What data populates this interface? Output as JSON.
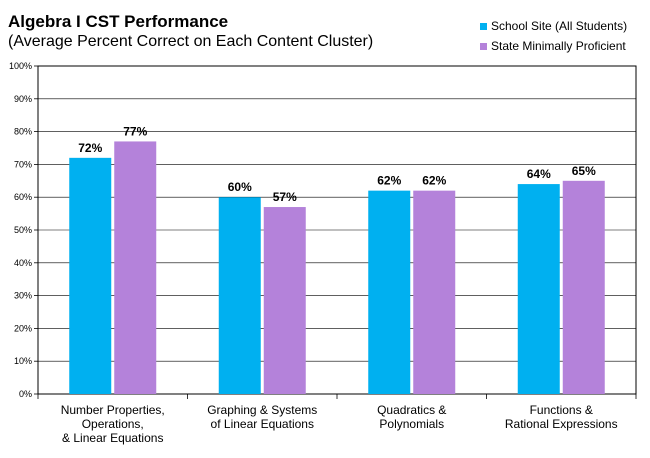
{
  "chart_data": {
    "type": "bar",
    "title": "Algebra I CST Performance",
    "subtitle": "(Average Percent Correct on Each Content Cluster)",
    "categories": [
      [
        "Number Properties,",
        "Operations,",
        "& Linear Equations"
      ],
      [
        "Graphing & Systems",
        "of Linear Equations"
      ],
      [
        "Quadratics &",
        "Polynomials"
      ],
      [
        "Functions &",
        "Rational Expressions"
      ]
    ],
    "series": [
      {
        "name": "School Site (All Students)",
        "color": "#00B0F0",
        "values": [
          72,
          60,
          62,
          64
        ],
        "labels": [
          "72%",
          "60%",
          "62%",
          "64%"
        ]
      },
      {
        "name": "State Minimally Proficient",
        "color": "#B482DA",
        "values": [
          77,
          57,
          62,
          65
        ],
        "labels": [
          "77%",
          "57%",
          "62%",
          "65%"
        ]
      }
    ],
    "ylim": [
      0,
      100
    ],
    "yticks": [
      "0%",
      "10%",
      "20%",
      "30%",
      "40%",
      "50%",
      "60%",
      "70%",
      "80%",
      "90%",
      "100%"
    ],
    "grid": true,
    "legend_position": "top-right"
  }
}
